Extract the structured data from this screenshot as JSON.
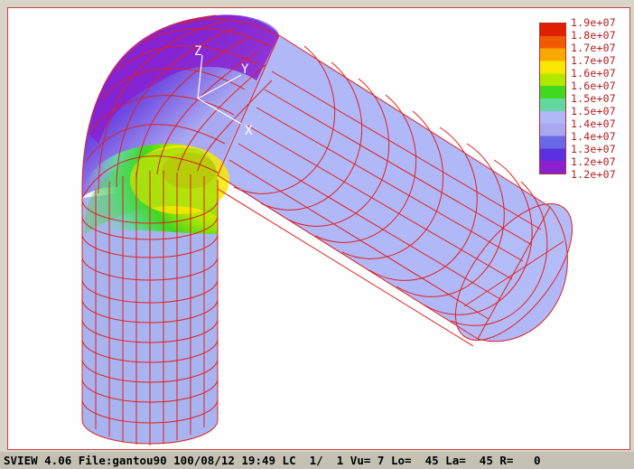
{
  "colors": {
    "mesh": "#e02020",
    "axes": "#ffffff",
    "legend_label": "#b02020"
  },
  "legend": {
    "colors": [
      "#e02000",
      "#f05a00",
      "#f8a800",
      "#f8e800",
      "#b0e800",
      "#40d820",
      "#60d8a0",
      "#b0b8f8",
      "#a8a8f0",
      "#6868e8",
      "#5a30e0",
      "#8a20d0"
    ],
    "labels": [
      "1.9e+07",
      "1.8e+07",
      "1.7e+07",
      "1.7e+07",
      "1.6e+07",
      "1.6e+07",
      "1.5e+07",
      "1.5e+07",
      "1.4e+07",
      "1.4e+07",
      "1.3e+07",
      "1.2e+07",
      "1.2e+07"
    ]
  },
  "axes": {
    "x_label": "X",
    "y_label": "Y",
    "z_label": "Z"
  },
  "status": {
    "text": "SVIEW 4.06 File:gantou90 100/08/12 19:49 LC  1/  1 Vu= 7 Lo=  45 La=  45 R=   0"
  }
}
